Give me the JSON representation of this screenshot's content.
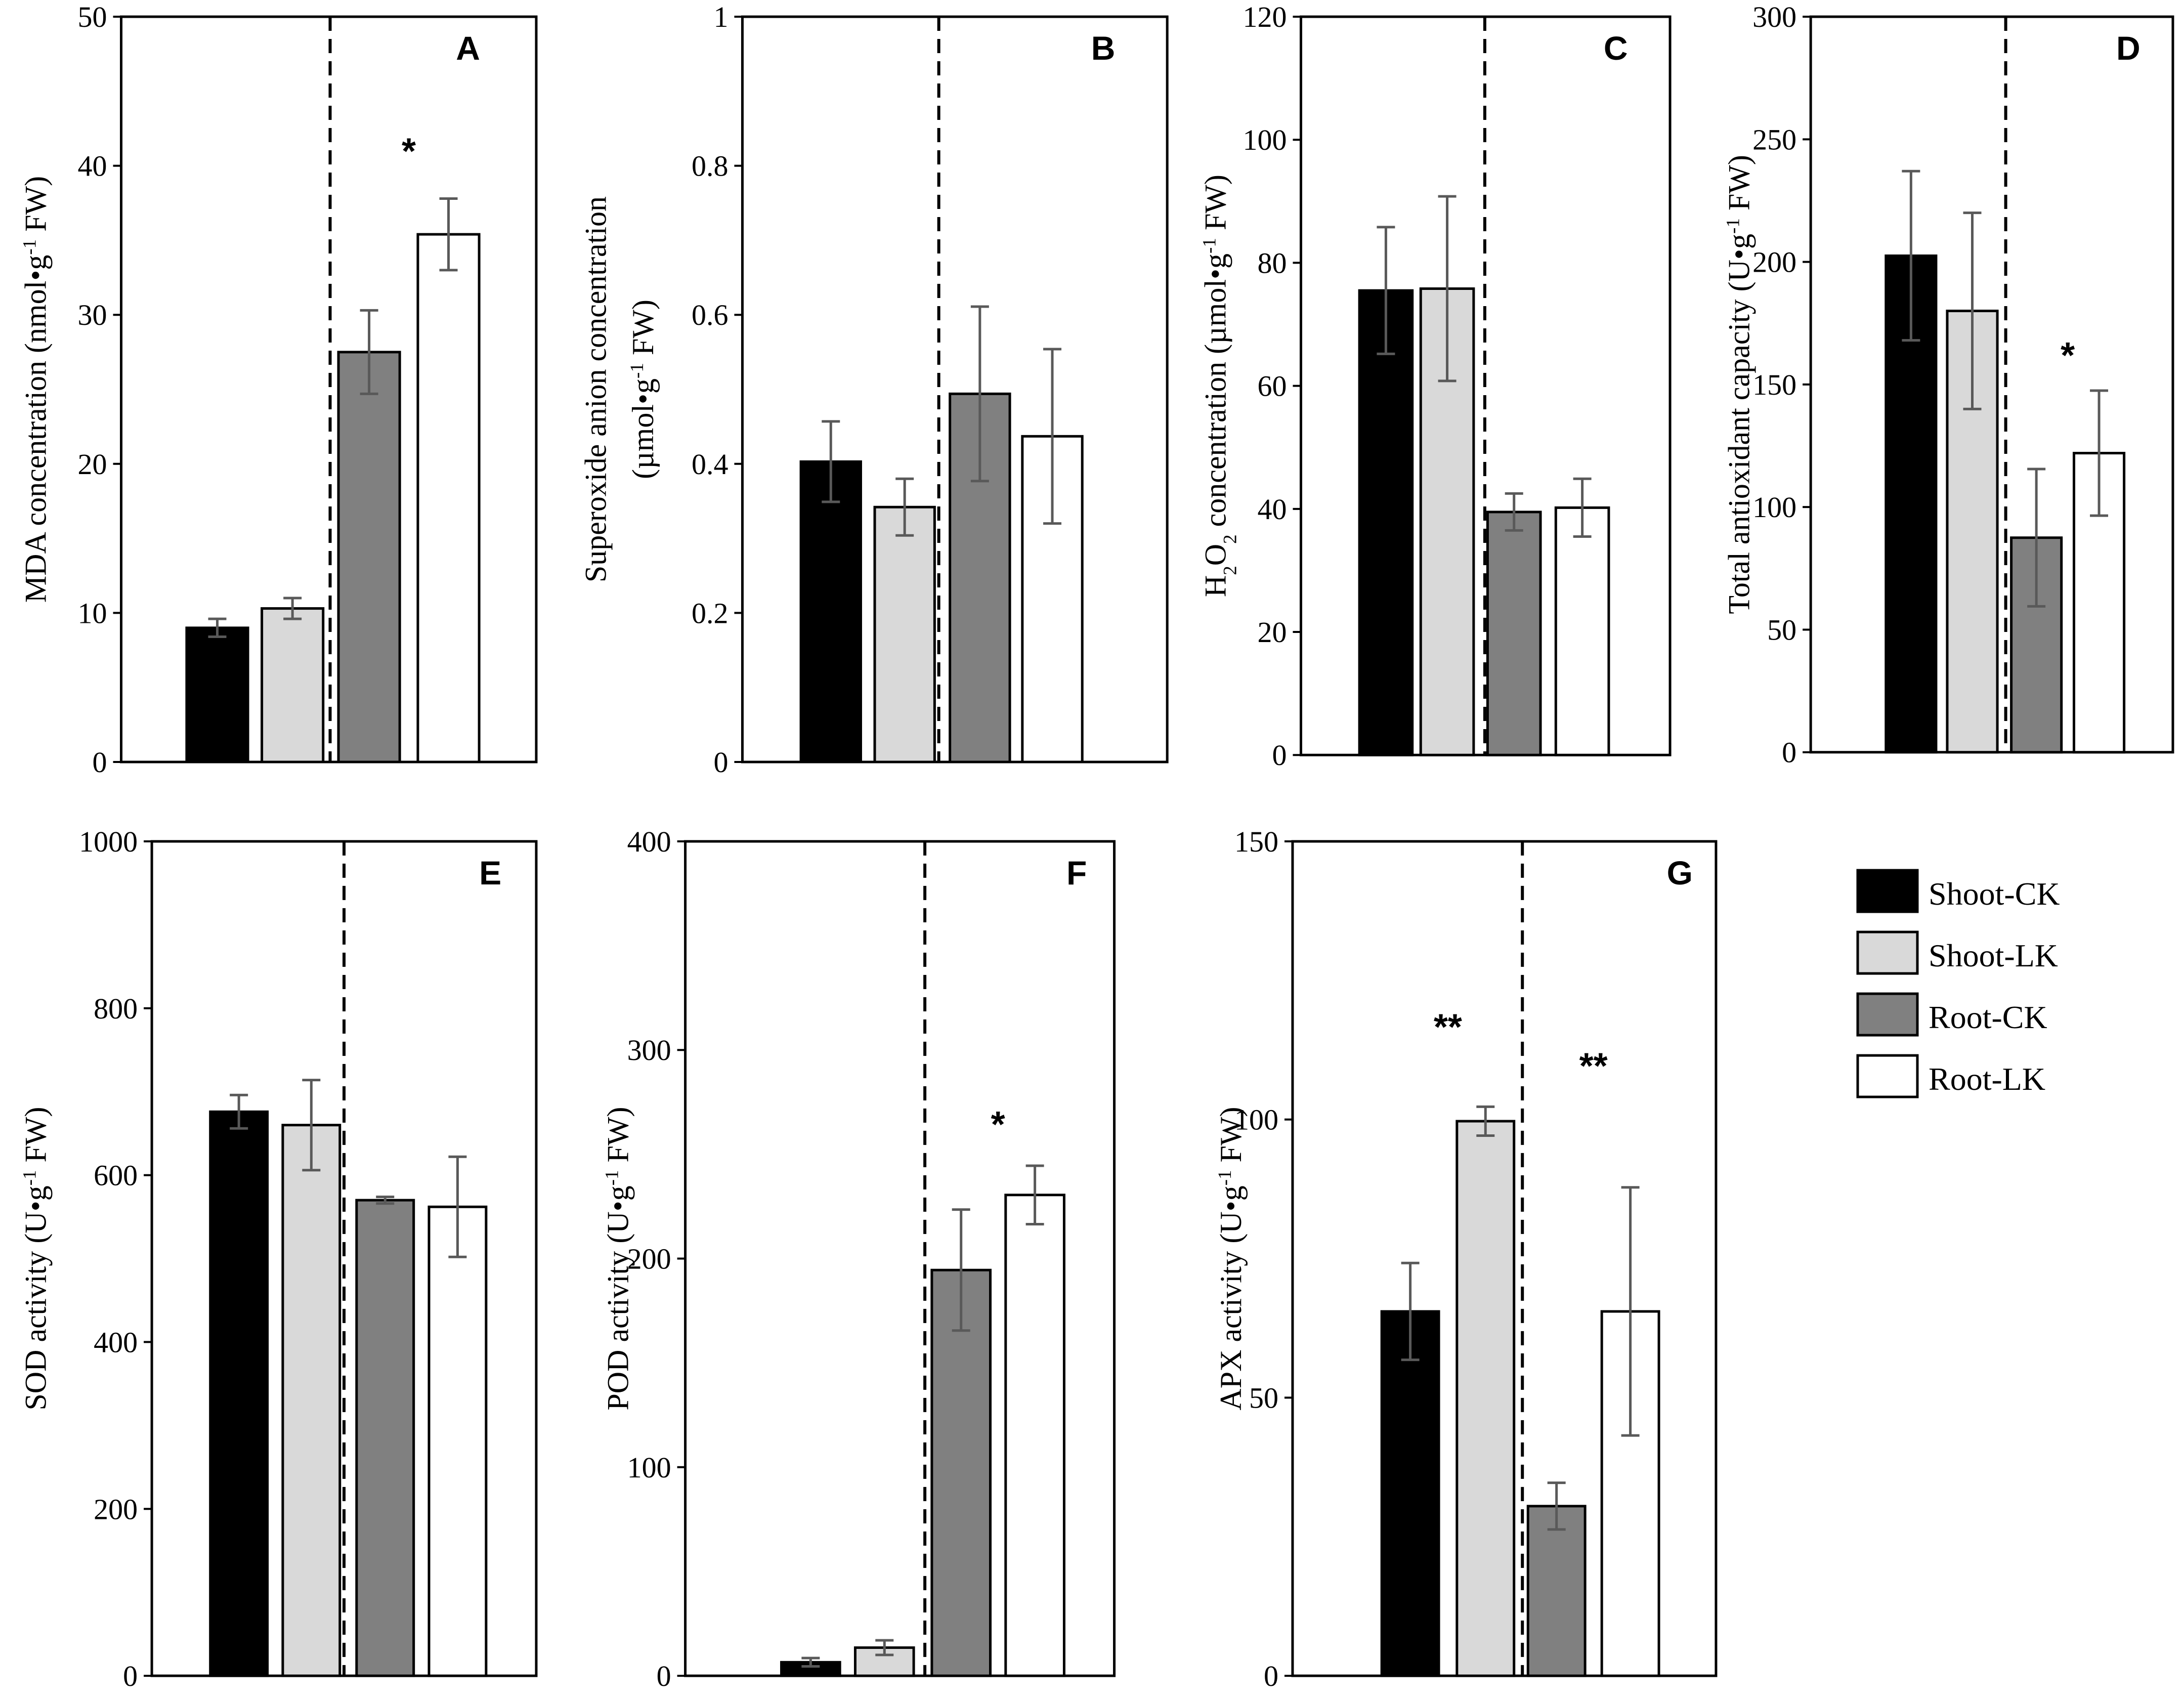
{
  "colors": {
    "Shoot-CK": "#000000",
    "Shoot-LK": "#d9d9d9",
    "Root-CK": "#808080",
    "Root-LK": "#ffffff",
    "error_bar": "#595959"
  },
  "legend": [
    "Shoot-CK",
    "Shoot-LK",
    "Root-CK",
    "Root-LK"
  ],
  "chart_data": [
    {
      "type": "bar",
      "panel": "A",
      "ylabel": "MDA concentration (nmol•g-1 FW)",
      "ylabel_parts": [
        {
          "t": "MDA concentration (nmol•g"
        },
        {
          "t": "-1",
          "sup": true
        },
        {
          "t": " FW)"
        }
      ],
      "ylim": [
        0,
        50
      ],
      "yticks": [
        0,
        10,
        20,
        30,
        40,
        50
      ],
      "ytick_labels": [
        "0",
        "10",
        "20",
        "30",
        "40",
        "50"
      ],
      "categories": [
        "Shoot-CK",
        "Shoot-LK",
        "Root-CK",
        "Root-LK"
      ],
      "values": [
        9.0,
        10.3,
        27.5,
        35.4
      ],
      "errors": [
        0.6,
        0.7,
        2.8,
        2.4
      ],
      "annotations": [
        {
          "text": "*",
          "between": [
            2,
            3
          ],
          "y": 41.5
        }
      ]
    },
    {
      "type": "bar",
      "panel": "B",
      "ylabel": "Superoxide anion concentration (µmol•g-1 FW)",
      "ylabel_lines": [
        [
          {
            "t": "Superoxide anion concentration"
          }
        ],
        [
          {
            "t": "(µmol•g"
          },
          {
            "t": "-1",
            "sup": true
          },
          {
            "t": " FW)"
          }
        ]
      ],
      "ylim": [
        0,
        1
      ],
      "yticks": [
        0,
        0.2,
        0.4,
        0.6,
        0.8,
        1
      ],
      "ytick_labels": [
        "0",
        "0.2",
        "0.4",
        "0.6",
        "0.8",
        "1"
      ],
      "categories": [
        "Shoot-CK",
        "Shoot-LK",
        "Root-CK",
        "Root-LK"
      ],
      "values": [
        0.403,
        0.342,
        0.494,
        0.437
      ],
      "errors": [
        0.054,
        0.038,
        0.117,
        0.117
      ],
      "annotations": []
    },
    {
      "type": "bar",
      "panel": "C",
      "ylabel": "H2O2 concentration (µmol•g-1 FW)",
      "ylabel_parts": [
        {
          "t": "H"
        },
        {
          "t": "2",
          "sub": true
        },
        {
          "t": "O"
        },
        {
          "t": "2",
          "sub": true
        },
        {
          "t": " concentration (µmol•g"
        },
        {
          "t": "-1",
          "sup": true
        },
        {
          "t": " FW)"
        }
      ],
      "ylim": [
        0,
        120
      ],
      "yticks": [
        0,
        20,
        40,
        60,
        80,
        100,
        120
      ],
      "ytick_labels": [
        "0",
        "20",
        "40",
        "60",
        "80",
        "100",
        "120"
      ],
      "categories": [
        "Shoot-CK",
        "Shoot-LK",
        "Root-CK",
        "Root-LK"
      ],
      "values": [
        75.5,
        75.8,
        39.5,
        40.2
      ],
      "errors": [
        10.3,
        15.0,
        3.0,
        4.7
      ],
      "annotations": []
    },
    {
      "type": "bar",
      "panel": "D",
      "ylabel": "Total antioxidant capacity (U•g-1 FW)",
      "ylabel_parts": [
        {
          "t": "Total  antioxidant  capacity (U•g"
        },
        {
          "t": "-1",
          "sup": true
        },
        {
          "t": " FW)"
        }
      ],
      "ylim": [
        0,
        300
      ],
      "yticks": [
        0,
        50,
        100,
        150,
        200,
        250,
        300
      ],
      "ytick_labels": [
        "0",
        "50",
        "100",
        "150",
        "200",
        "250",
        "300"
      ],
      "categories": [
        "Shoot-CK",
        "Shoot-LK",
        "Root-CK",
        "Root-LK"
      ],
      "values": [
        202.5,
        180.0,
        87.5,
        122.0
      ],
      "errors": [
        34.5,
        40.0,
        28.0,
        25.5
      ],
      "annotations": [
        {
          "text": "*",
          "between": [
            2,
            3
          ],
          "y": 165
        }
      ]
    },
    {
      "type": "bar",
      "panel": "E",
      "ylabel": "SOD activity (U•g-1 FW)",
      "ylabel_parts": [
        {
          "t": "SOD activity (U•g"
        },
        {
          "t": "-1",
          "sup": true
        },
        {
          "t": " FW)"
        }
      ],
      "ylim": [
        0,
        1000
      ],
      "yticks": [
        0,
        200,
        400,
        600,
        800,
        1000
      ],
      "ytick_labels": [
        "0",
        "200",
        "400",
        "600",
        "800",
        "1000"
      ],
      "categories": [
        "Shoot-CK",
        "Shoot-LK",
        "Root-CK",
        "Root-LK"
      ],
      "values": [
        676,
        660,
        570,
        562
      ],
      "errors": [
        20,
        54,
        4,
        60
      ],
      "annotations": []
    },
    {
      "type": "bar",
      "panel": "F",
      "ylabel": "POD activity (U•g-1 FW)",
      "ylabel_parts": [
        {
          "t": "POD activity (U•g"
        },
        {
          "t": "-1",
          "sup": true
        },
        {
          "t": " FW)"
        }
      ],
      "ylim": [
        0,
        400
      ],
      "yticks": [
        0,
        100,
        200,
        300,
        400
      ],
      "ytick_labels": [
        "0",
        "100",
        "200",
        "300",
        "400"
      ],
      "categories": [
        "Shoot-CK",
        "Shoot-LK",
        "Root-CK",
        "Root-LK"
      ],
      "values": [
        6.5,
        13.5,
        194.5,
        230.5
      ],
      "errors": [
        2.0,
        3.5,
        29.0,
        14.0
      ],
      "annotations": [
        {
          "text": "*",
          "between": [
            2,
            3
          ],
          "y": 268
        }
      ]
    },
    {
      "type": "bar",
      "panel": "G",
      "ylabel": "APX activity (U•g-1 FW)",
      "ylabel_parts": [
        {
          "t": "APX activity (U•g"
        },
        {
          "t": "-1",
          "sup": true
        },
        {
          "t": " FW)"
        }
      ],
      "ylim": [
        0,
        150
      ],
      "yticks": [
        0,
        50,
        100,
        150
      ],
      "ytick_labels": [
        "0",
        "50",
        "100",
        "150"
      ],
      "categories": [
        "Shoot-CK",
        "Shoot-LK",
        "Root-CK",
        "Root-LK"
      ],
      "values": [
        65.5,
        99.7,
        30.5,
        65.5
      ],
      "errors": [
        8.7,
        2.6,
        4.2,
        22.3
      ],
      "annotations": [
        {
          "text": "**",
          "between": [
            0,
            1
          ],
          "y": 118
        },
        {
          "text": "**",
          "between": [
            2,
            3
          ],
          "y": 111
        }
      ]
    }
  ]
}
